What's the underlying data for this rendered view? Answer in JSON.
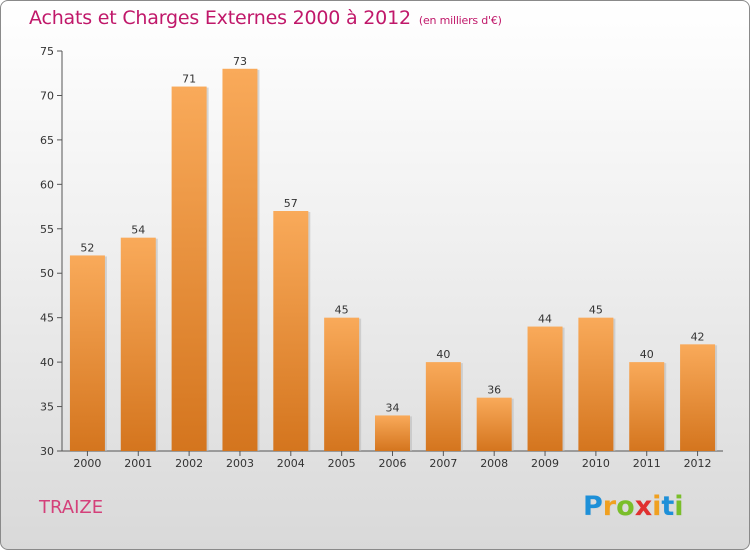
{
  "title": "Achats et Charges Externes 2000 à 2012",
  "unit": "(en milliers d'€)",
  "town": "TRAIZE",
  "brand": {
    "letters": [
      "P",
      "r",
      "o",
      "x",
      "i",
      "t",
      "i"
    ],
    "colors": [
      "#1e90d8",
      "#f0a020",
      "#7abe2a",
      "#e03030",
      "#f0a020",
      "#1e90d8",
      "#7abe2a"
    ]
  },
  "colors": {
    "title": "#c0186a",
    "bar_light": "#f9aa5a",
    "bar_dark": "#d4751e"
  },
  "chart_data": {
    "type": "bar",
    "categories": [
      "2000",
      "2001",
      "2002",
      "2003",
      "2004",
      "2005",
      "2006",
      "2007",
      "2008",
      "2009",
      "2010",
      "2011",
      "2012"
    ],
    "values": [
      52,
      54,
      71,
      73,
      57,
      45,
      34,
      40,
      36,
      44,
      45,
      40,
      42
    ],
    "title": "Achats et Charges Externes 2000 à 2012",
    "xlabel": "",
    "ylabel": "",
    "ylim": [
      30,
      75
    ],
    "yticks": [
      30,
      35,
      40,
      45,
      50,
      55,
      60,
      65,
      70,
      75
    ],
    "grid": false,
    "legend": "none"
  }
}
